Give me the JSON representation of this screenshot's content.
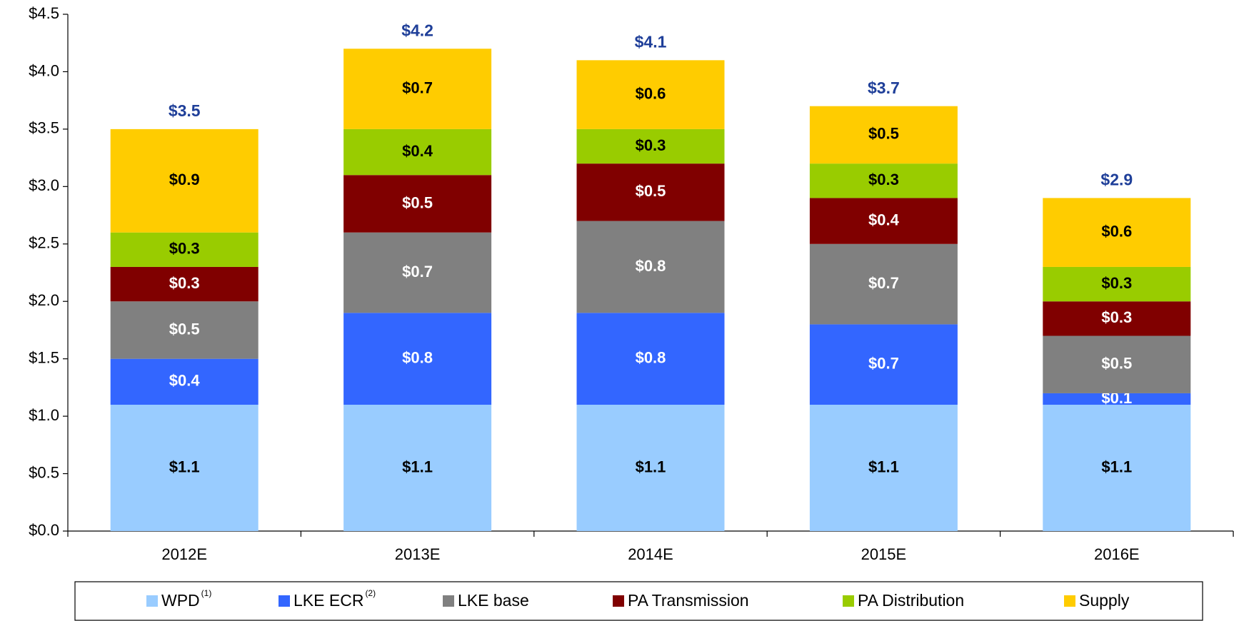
{
  "chart_data": {
    "type": "stacked_bar",
    "categories": [
      "2012E",
      "2013E",
      "2014E",
      "2015E",
      "2016E"
    ],
    "series": [
      {
        "name": "WPD",
        "note": "(1)",
        "color": "#99ccff",
        "label_color": "#000000",
        "values": [
          1.1,
          1.1,
          1.1,
          1.1,
          1.1
        ],
        "value_labels": [
          "$1.1",
          "$1.1",
          "$1.1",
          "$1.1",
          "$1.1"
        ]
      },
      {
        "name": "LKE ECR",
        "note": "(2)",
        "color": "#3366ff",
        "label_color": "#ffffff",
        "values": [
          0.4,
          0.8,
          0.8,
          0.7,
          0.1
        ],
        "value_labels": [
          "$0.4",
          "$0.8",
          "$0.8",
          "$0.7",
          "$0.1"
        ]
      },
      {
        "name": "LKE base",
        "color": "#808080",
        "label_color": "#ffffff",
        "values": [
          0.5,
          0.7,
          0.8,
          0.7,
          0.5
        ],
        "value_labels": [
          "$0.5",
          "$0.7",
          "$0.8",
          "$0.7",
          "$0.5"
        ]
      },
      {
        "name": "PA Transmission",
        "color": "#800000",
        "label_color": "#ffffff",
        "values": [
          0.3,
          0.5,
          0.5,
          0.4,
          0.3
        ],
        "value_labels": [
          "$0.3",
          "$0.5",
          "$0.5",
          "$0.4",
          "$0.3"
        ]
      },
      {
        "name": "PA Distribution",
        "color": "#99cc00",
        "label_color": "#000000",
        "values": [
          0.3,
          0.4,
          0.3,
          0.3,
          0.3
        ],
        "value_labels": [
          "$0.3",
          "$0.4",
          "$0.3",
          "$0.3",
          "$0.3"
        ]
      },
      {
        "name": "Supply",
        "color": "#ffcc00",
        "label_color": "#000000",
        "values": [
          0.9,
          0.7,
          0.6,
          0.5,
          0.6
        ],
        "value_labels": [
          "$0.9",
          "$0.7",
          "$0.6",
          "$0.5",
          "$0.6"
        ]
      }
    ],
    "totals": [
      3.5,
      4.2,
      4.1,
      3.7,
      2.9
    ],
    "total_labels": [
      "$3.5",
      "$4.2",
      "$4.1",
      "$3.7",
      "$2.9"
    ],
    "ylim": [
      0,
      4.5
    ],
    "yticks": [
      {
        "value": 0,
        "label": "$0.0"
      },
      {
        "value": 0.5,
        "label": "$0.5"
      },
      {
        "value": 1,
        "label": "$1.0"
      },
      {
        "value": 1.5,
        "label": "$1.5"
      },
      {
        "value": 2,
        "label": "$2.0"
      },
      {
        "value": 2.5,
        "label": "$2.5"
      },
      {
        "value": 3,
        "label": "$3.0"
      },
      {
        "value": 3.5,
        "label": "$3.5"
      },
      {
        "value": 4,
        "label": "$4.0"
      },
      {
        "value": 4.5,
        "label": "$4.5"
      }
    ],
    "legend": "bottom"
  }
}
